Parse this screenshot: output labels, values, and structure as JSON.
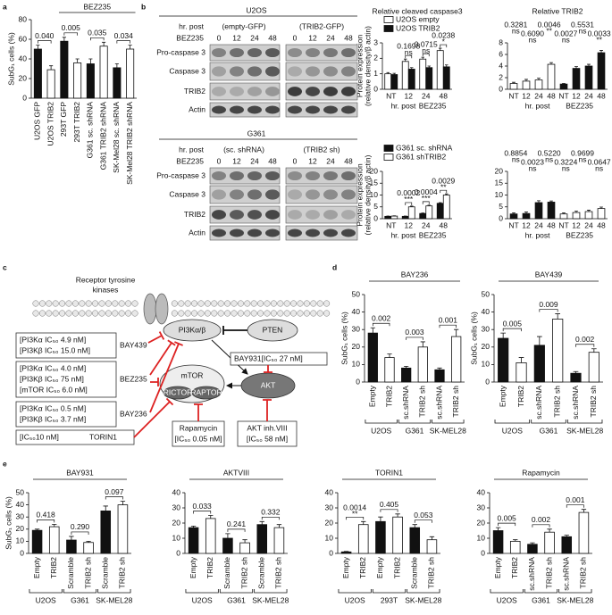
{
  "panel_labels": [
    "a",
    "b",
    "c",
    "d",
    "e"
  ],
  "chart_data": [
    {
      "type": "bar",
      "ylabel": "SubG₁ cells (%)",
      "categories": [
        "U2OS GFP",
        "U2OS TRIB2",
        "293T GFP",
        "293T TRIB2",
        "G361 sc. shRNA",
        "G361 TRIB2 shRNA",
        "SK-Mel28 sc. shRNA",
        "SK-Mel28 TRIB2 shRNA"
      ],
      "series": [
        {
          "colors": [
            "#111111",
            "#ffffff",
            "#111111",
            "#ffffff",
            "#111111",
            "#ffffff",
            "#111111",
            "#ffffff"
          ],
          "values": [
            50,
            29,
            58,
            36,
            35,
            53,
            31,
            50
          ],
          "errors": [
            4,
            4,
            4,
            4,
            5,
            4,
            4,
            4
          ]
        }
      ],
      "header": "BEZ235",
      "p_values": [
        "0.040",
        "0.005",
        "0.035",
        "0.034"
      ],
      "ylim": [
        0,
        80
      ],
      "yticks": [
        0,
        20,
        40,
        60,
        80
      ]
    },
    {
      "type": "bar",
      "title": "Relative cleaved caspase3",
      "ylabel": [
        "Protein expression",
        "(relative density/β actin)"
      ],
      "categories": [
        "NT",
        "12",
        "24",
        "48"
      ],
      "series": [
        {
          "name": "U2OS empty",
          "color": "#ffffff",
          "values": [
            1.0,
            1.8,
            1.95,
            2.5
          ],
          "errors": [
            0.08,
            0.15,
            0.12,
            0.15
          ]
        },
        {
          "name": "U2OS TRIB2",
          "color": "#111111",
          "values": [
            0.95,
            1.3,
            1.4,
            1.45
          ],
          "errors": [
            0.08,
            0.1,
            0.1,
            0.12
          ]
        }
      ],
      "xlabel": [
        "hr. post",
        "BEZ235"
      ],
      "p_values": [
        "0.1698",
        "0.0715",
        "0.0238"
      ],
      "significance": [
        "ns",
        "ns",
        "*"
      ],
      "ylim": [
        0,
        3
      ],
      "yticks": [
        0,
        1,
        2,
        3
      ]
    },
    {
      "type": "bar",
      "title": "Relative TRIB2",
      "categories": [
        "NT",
        "12",
        "24",
        "48",
        "NT",
        "12",
        "24",
        "48"
      ],
      "series": [
        {
          "colors": [
            "#ffffff",
            "#ffffff",
            "#ffffff",
            "#ffffff",
            "#111111",
            "#111111",
            "#111111",
            "#111111"
          ],
          "values": [
            1.0,
            1.4,
            1.6,
            4.3,
            0.9,
            3.6,
            4.0,
            6.3
          ],
          "errors": [
            0.2,
            0.3,
            0.3,
            0.3,
            0.1,
            0.3,
            0.3,
            0.4
          ]
        }
      ],
      "xlabel": [
        "hr. post",
        "BEZ235"
      ],
      "annotations": [
        "0.3281",
        "ns",
        "0.6090",
        "ns",
        "0.0046",
        "**",
        "0.0027",
        "ns",
        "0.5531",
        "ns",
        "0.0033",
        "**"
      ],
      "ylim": [
        0,
        8
      ],
      "yticks": [
        0,
        2,
        4,
        6,
        8
      ]
    },
    {
      "type": "bar",
      "ylabel": [
        "Protein expression",
        "(relative density/β actin)"
      ],
      "categories": [
        "NT",
        "12",
        "24",
        "48"
      ],
      "series": [
        {
          "name": "G361 sc. shRNA",
          "color": "#111111",
          "values": [
            1.0,
            1.0,
            2.2,
            6.5
          ],
          "errors": [
            0.1,
            0.1,
            0.2,
            0.3
          ]
        },
        {
          "name": "G361 shTRIB2",
          "color": "#ffffff",
          "values": [
            1.1,
            5.0,
            5.4,
            10.0
          ],
          "errors": [
            0.1,
            0.3,
            0.3,
            0.5
          ]
        }
      ],
      "xlabel": [
        "hr. post",
        "BEZ235"
      ],
      "p_values": [
        "0.0002",
        "0.0004",
        "0.0029"
      ],
      "significance": [
        "***",
        "***",
        "**"
      ],
      "ylim": [
        0,
        20
      ],
      "yticks": [
        0,
        5,
        10,
        15,
        20
      ]
    },
    {
      "type": "bar",
      "categories": [
        "NT",
        "12",
        "24",
        "48",
        "NT",
        "12",
        "24",
        "48"
      ],
      "series": [
        {
          "colors": [
            "#111111",
            "#111111",
            "#111111",
            "#111111",
            "#ffffff",
            "#ffffff",
            "#ffffff",
            "#ffffff"
          ],
          "values": [
            2.0,
            2.2,
            6.8,
            7.0,
            2.0,
            2.6,
            3.0,
            4.3
          ],
          "errors": [
            0.5,
            0.6,
            0.8,
            0.5,
            0.5,
            0.6,
            0.6,
            0.6
          ]
        }
      ],
      "xlabel": [
        "hr. post",
        "BEZ235"
      ],
      "annotations": [
        "0.8854",
        "ns",
        "0.0023",
        "ns",
        "0.5220",
        "ns",
        "0.3224",
        "ns",
        "0.9699",
        "ns",
        "0.0647",
        "ns"
      ],
      "ylim": [
        0,
        20
      ],
      "yticks": [
        0,
        5,
        10,
        15,
        20
      ]
    },
    {
      "type": "bar",
      "title": "BAY236",
      "ylabel": "SubG₁ cells (%)",
      "categories": [
        "Empty",
        "TRIB2",
        "sc.shRNA",
        "TRIB2 sh",
        "sc.shRNA",
        "TRIB2 sh"
      ],
      "series": [
        {
          "colors": [
            "#111111",
            "#ffffff",
            "#111111",
            "#ffffff",
            "#111111",
            "#ffffff"
          ],
          "values": [
            28,
            14,
            8,
            20,
            7,
            26
          ],
          "errors": [
            3,
            2,
            1,
            3,
            1,
            4
          ]
        }
      ],
      "p_values": [
        "0.002",
        "0.003",
        "0.001"
      ],
      "groups": [
        "U2OS",
        "G361",
        "SK-MEL28"
      ],
      "ylim": [
        0,
        50
      ],
      "yticks": [
        0,
        10,
        20,
        30,
        40,
        50
      ]
    },
    {
      "type": "bar",
      "title": "BAY439",
      "ylabel": "SubG₁ cells (%)",
      "categories": [
        "Empty",
        "TRIB2",
        "sc.shRNA",
        "TRIB2 sh",
        "sc.shRNA",
        "TRIB2 sh"
      ],
      "series": [
        {
          "colors": [
            "#111111",
            "#ffffff",
            "#111111",
            "#ffffff",
            "#111111",
            "#ffffff"
          ],
          "values": [
            25,
            11,
            21,
            36,
            5,
            17
          ],
          "errors": [
            3,
            3,
            5,
            3,
            1,
            2
          ]
        }
      ],
      "p_values": [
        "0.005",
        "0.009",
        "0.002"
      ],
      "groups": [
        "U2OS",
        "G361",
        "SK-MEL28"
      ],
      "ylim": [
        0,
        50
      ],
      "yticks": [
        0,
        10,
        20,
        30,
        40,
        50
      ]
    },
    {
      "type": "bar",
      "title": "BAY931",
      "ylabel": "SubG₁ cells (%)",
      "categories": [
        "Empty",
        "TRIB2",
        "Scramble",
        "TRIB2 sh",
        "Scramble",
        "TRIB2 sh"
      ],
      "series": [
        {
          "colors": [
            "#111111",
            "#ffffff",
            "#111111",
            "#ffffff",
            "#111111",
            "#ffffff"
          ],
          "values": [
            19,
            22,
            11,
            9,
            35,
            40
          ],
          "errors": [
            1,
            2,
            3,
            1,
            4,
            3
          ]
        }
      ],
      "p_values": [
        "0.418",
        "0.290",
        "0.097"
      ],
      "groups": [
        "U2OS",
        "G361",
        "SK-MEL28"
      ],
      "ylim": [
        0,
        50
      ],
      "yticks": [
        0,
        10,
        20,
        30,
        40,
        50
      ]
    },
    {
      "type": "bar",
      "title": "AKTVIII",
      "categories": [
        "Empty",
        "TRIB2",
        "Scramble",
        "TRIB2 sh",
        "Scramble",
        "TRIB2 sh"
      ],
      "series": [
        {
          "colors": [
            "#111111",
            "#ffffff",
            "#111111",
            "#ffffff",
            "#111111",
            "#ffffff"
          ],
          "values": [
            17,
            23,
            10,
            7,
            19,
            17
          ],
          "errors": [
            1,
            2,
            3,
            2,
            2,
            2
          ]
        }
      ],
      "p_values": [
        "0.033",
        "0.241",
        "0.332"
      ],
      "groups": [
        "U2OS",
        "G361",
        "SK-MEL28"
      ],
      "ylim": [
        0,
        40
      ],
      "yticks": [
        0,
        10,
        20,
        30,
        40
      ]
    },
    {
      "type": "bar",
      "title": "TORIN1",
      "categories": [
        "Empty",
        "TRIB2",
        "Empty",
        "TRIB2",
        "Scramble",
        "TRIB2 sh"
      ],
      "series": [
        {
          "colors": [
            "#111111",
            "#ffffff",
            "#111111",
            "#ffffff",
            "#111111",
            "#ffffff"
          ],
          "values": [
            1,
            19,
            21,
            24,
            17,
            9
          ],
          "errors": [
            0.3,
            2,
            3,
            2,
            2,
            2
          ]
        }
      ],
      "p_values": [
        "0.0014",
        "0.405",
        "0.053"
      ],
      "significance": [
        "**",
        null,
        null
      ],
      "groups": [
        "U2OS",
        "293T",
        "SK-MEL28"
      ],
      "ylim": [
        0,
        40
      ],
      "yticks": [
        0,
        10,
        20,
        30,
        40
      ]
    },
    {
      "type": "bar",
      "title": "Rapamycin",
      "categories": [
        "Empty",
        "TRIB2",
        "sc.shRNA",
        "TRIB2 sh",
        "sc.shRNA",
        "TRIB2 sh"
      ],
      "series": [
        {
          "colors": [
            "#111111",
            "#ffffff",
            "#111111",
            "#ffffff",
            "#111111",
            "#ffffff"
          ],
          "values": [
            15,
            8,
            6,
            14,
            11,
            27
          ],
          "errors": [
            2,
            1,
            1,
            2,
            1,
            2
          ]
        }
      ],
      "p_values": [
        "0.005",
        "0.002",
        "0.001"
      ],
      "groups": [
        "U2OS",
        "G361",
        "SK-MEL28"
      ],
      "ylim": [
        0,
        40
      ],
      "yticks": [
        0,
        10,
        20,
        30,
        40
      ]
    }
  ],
  "blots": [
    {
      "cell": "U2OS",
      "left": "(empty-GFP)",
      "right": "(TRIB2-GFP)",
      "time_label": "hr. post",
      "drug": "BEZ235",
      "times": [
        0,
        12,
        24,
        48,
        0,
        12,
        24,
        48
      ],
      "rows": [
        "Pro-caspase 3",
        "Caspase 3",
        "TRIB2",
        "Actin"
      ]
    },
    {
      "cell": "G361",
      "left": "(sc. shRNA)",
      "right": "(TRIB2 sh)",
      "time_label": "hr. post",
      "drug": "BEZ235",
      "times": [
        0,
        12,
        24,
        48,
        0,
        12,
        24,
        48
      ],
      "rows": [
        "Pro-caspase 3",
        "Caspase 3",
        "TRIB2",
        "Actin"
      ]
    }
  ],
  "diagram": {
    "receptor": [
      "Receptor tyrosine",
      "kinases"
    ],
    "pi3k": "PI3Kα/β",
    "pten": "PTEN",
    "mtor": "mTOR",
    "rictor": "RICTOR",
    "raptor": "RAPTOR",
    "akt": "AKT",
    "inhibitors": [
      {
        "lines": [
          "[PI3Kα IC₅₀ 4.9 nM]",
          "[PI3Kβ IC₅₀ 15.0 nM]"
        ],
        "name": "BAY439"
      },
      {
        "lines": [
          "[PI3Kα IC₅₀ 4.0 nM]",
          "[PI3Kβ IC₅₀ 75 nM]",
          "[mTOR IC₅₀ 6.0 nM]"
        ],
        "name": "BEZ235"
      },
      {
        "lines": [
          "[PI3Kα IC₅₀ 0.5 nM]",
          "[PI3Kβ IC₅₀ 3.7 nM]"
        ],
        "name": "BAY236"
      },
      {
        "lines": [
          "[IC₅₀10 nM]"
        ],
        "name": "TORIN1"
      }
    ],
    "bay931": "BAY931[IC₅₀ 27 nM]",
    "rapamycin": [
      "Rapamycin",
      "[IC₅₀ 0.05 nM]"
    ],
    "akt_inh": [
      "AKT inh.VIII",
      "[IC₅₀ 58 nM]"
    ]
  }
}
